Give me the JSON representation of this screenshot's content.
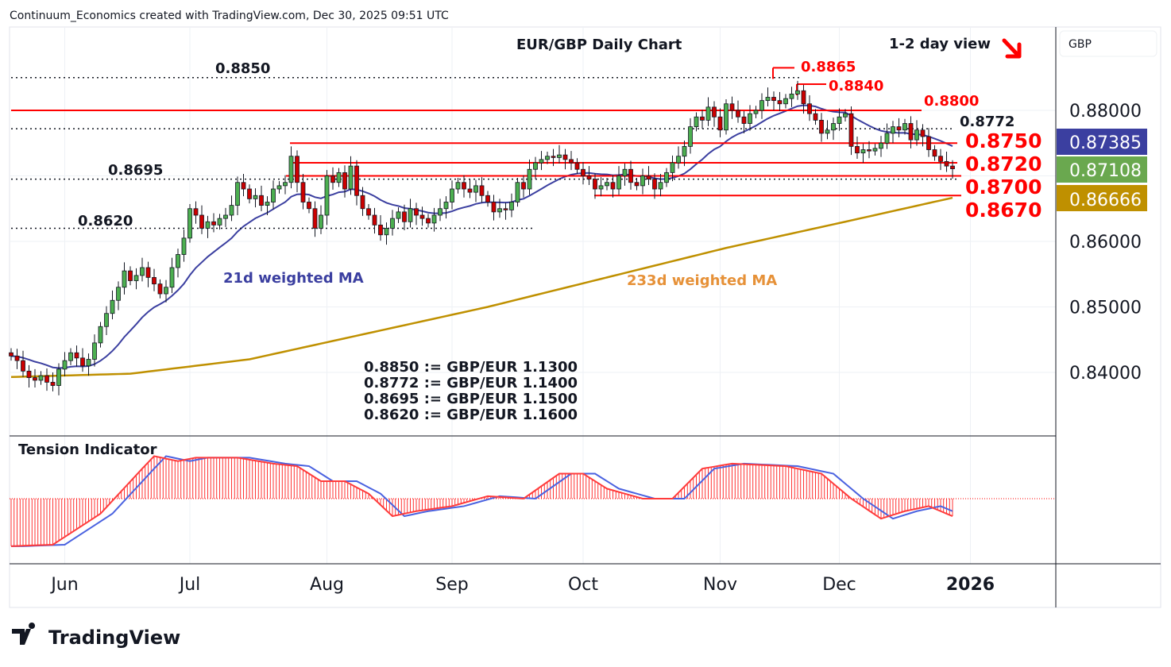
{
  "header": {
    "attribution": "Continuum_Economics created with TradingView.com, Dec 30, 2025 09:51 UTC"
  },
  "title": "EUR/GBP Daily Chart",
  "view": "1-2 day view",
  "view_arrow_icon": "arrow-down-right-icon",
  "currency": "GBP",
  "footer_logo": "TradingView",
  "colors": {
    "up": "#4caf50",
    "down": "#cc0000",
    "ma21": "#3b3fa0",
    "ma233": "#bf9000",
    "level": "#ff0000",
    "last": "#6aa84f"
  },
  "chart_data": {
    "type": "candlestick",
    "title": "EUR/GBP Daily Chart",
    "ylim": [
      0.835,
      0.8885
    ],
    "y_ticks": [
      "0.88000",
      "0.86000",
      "0.85000",
      "0.84000"
    ],
    "y_tick_values": [
      0.88,
      0.86,
      0.85,
      0.84
    ],
    "x_ticks": [
      "Jun",
      "Jul",
      "Aug",
      "Sep",
      "Oct",
      "Nov",
      "Dec",
      "2026"
    ],
    "x_tick_bars": [
      9,
      30,
      53,
      74,
      96,
      119,
      139,
      161
    ],
    "closes": [
      0.8425,
      0.8418,
      0.8402,
      0.8392,
      0.8388,
      0.8395,
      0.8385,
      0.838,
      0.8405,
      0.8418,
      0.843,
      0.8422,
      0.841,
      0.842,
      0.8445,
      0.847,
      0.849,
      0.851,
      0.853,
      0.8555,
      0.854,
      0.8548,
      0.856,
      0.8545,
      0.8535,
      0.852,
      0.853,
      0.856,
      0.858,
      0.8605,
      0.865,
      0.864,
      0.862,
      0.863,
      0.8625,
      0.8635,
      0.864,
      0.8655,
      0.869,
      0.868,
      0.8665,
      0.867,
      0.8655,
      0.866,
      0.868,
      0.8685,
      0.869,
      0.873,
      0.869,
      0.866,
      0.865,
      0.862,
      0.864,
      0.87,
      0.869,
      0.8705,
      0.868,
      0.8715,
      0.867,
      0.865,
      0.864,
      0.8625,
      0.861,
      0.862,
      0.8635,
      0.8645,
      0.863,
      0.865,
      0.864,
      0.8635,
      0.8628,
      0.864,
      0.865,
      0.866,
      0.868,
      0.869,
      0.868,
      0.8675,
      0.8685,
      0.867,
      0.866,
      0.8645,
      0.865,
      0.8648,
      0.866,
      0.869,
      0.868,
      0.871,
      0.872,
      0.8725,
      0.873,
      0.8728,
      0.8732,
      0.8725,
      0.872,
      0.871,
      0.87,
      0.8695,
      0.868,
      0.8685,
      0.869,
      0.868,
      0.87,
      0.871,
      0.869,
      0.8685,
      0.87,
      0.8695,
      0.868,
      0.869,
      0.8705,
      0.872,
      0.873,
      0.8745,
      0.8775,
      0.879,
      0.8785,
      0.8805,
      0.879,
      0.877,
      0.881,
      0.88,
      0.879,
      0.878,
      0.8795,
      0.88,
      0.8815,
      0.882,
      0.8815,
      0.881,
      0.8818,
      0.8825,
      0.883,
      0.881,
      0.8795,
      0.8785,
      0.8765,
      0.877,
      0.878,
      0.879,
      0.8795,
      0.8745,
      0.8735,
      0.874,
      0.8738,
      0.8742,
      0.875,
      0.8765,
      0.8775,
      0.877,
      0.878,
      0.8755,
      0.877,
      0.876,
      0.874,
      0.873,
      0.8722,
      0.8715,
      0.87108
    ],
    "ma233_points": [
      [
        0,
        0.8393
      ],
      [
        20,
        0.8398
      ],
      [
        40,
        0.842
      ],
      [
        60,
        0.846
      ],
      [
        80,
        0.85
      ],
      [
        100,
        0.8545
      ],
      [
        120,
        0.859
      ],
      [
        140,
        0.863
      ],
      [
        158,
        0.86666
      ]
    ],
    "series_labels": {
      "ma21": "21d weighted MA",
      "ma233": "233d weighted MA"
    },
    "last_values": {
      "ma21": "0.87385",
      "close": "0.87108",
      "ma233": "0.86666"
    },
    "levels": [
      {
        "price": 0.885,
        "label": "0.8850",
        "style": "dotted"
      },
      {
        "price": 0.8772,
        "label": "0.8772",
        "style": "dotted"
      },
      {
        "price": 0.8695,
        "label": "0.8695",
        "style": "dotted"
      },
      {
        "price": 0.862,
        "label": "0.8620",
        "style": "dotted"
      },
      {
        "price": 0.8865,
        "label": "0.8865",
        "style": "resistance"
      },
      {
        "price": 0.884,
        "label": "0.8840",
        "style": "resistance"
      },
      {
        "price": 0.88,
        "label": "0.8800",
        "style": "resistance"
      },
      {
        "price": 0.875,
        "label": "0.8750",
        "style": "key"
      },
      {
        "price": 0.872,
        "label": "0.8720",
        "style": "key"
      },
      {
        "price": 0.87,
        "label": "0.8700",
        "style": "key"
      },
      {
        "price": 0.867,
        "label": "0.8670",
        "style": "key"
      }
    ],
    "conversions": [
      "0.8850 := GBP/EUR 1.1300",
      "0.8772 := GBP/EUR 1.1400",
      "0.8695 := GBP/EUR 1.1500",
      "0.8620 := GBP/EUR 1.1600"
    ],
    "indicator": {
      "title": "Tension Indicator",
      "range": [
        -1,
        1
      ],
      "fast_points": [
        [
          0,
          -0.95
        ],
        [
          7,
          -0.92
        ],
        [
          15,
          -0.3
        ],
        [
          22,
          0.6
        ],
        [
          24,
          0.85
        ],
        [
          28,
          0.75
        ],
        [
          31,
          0.82
        ],
        [
          38,
          0.82
        ],
        [
          44,
          0.7
        ],
        [
          48,
          0.65
        ],
        [
          52,
          0.35
        ],
        [
          56,
          0.35
        ],
        [
          60,
          0.1
        ],
        [
          64,
          -0.35
        ],
        [
          68,
          -0.25
        ],
        [
          74,
          -0.15
        ],
        [
          80,
          0.05
        ],
        [
          86,
          0.0
        ],
        [
          92,
          0.5
        ],
        [
          96,
          0.5
        ],
        [
          100,
          0.2
        ],
        [
          106,
          0.0
        ],
        [
          111,
          0.0
        ],
        [
          116,
          0.6
        ],
        [
          121,
          0.7
        ],
        [
          130,
          0.65
        ],
        [
          136,
          0.5
        ],
        [
          141,
          0.0
        ],
        [
          146,
          -0.4
        ],
        [
          150,
          -0.25
        ],
        [
          154,
          -0.15
        ],
        [
          158,
          -0.35
        ]
      ],
      "slow_lag_bars": 2
    }
  }
}
